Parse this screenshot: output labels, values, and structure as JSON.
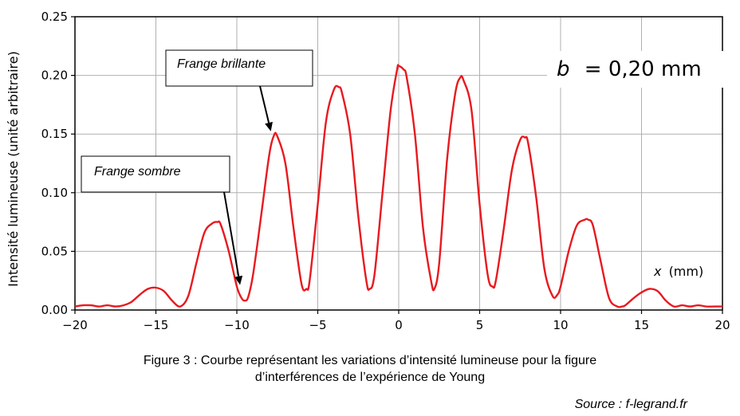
{
  "chart_data": {
    "type": "line",
    "ylabel": "Intensité lumineuse (unité arbitraire)",
    "xlabel_var": "x",
    "xlabel_unit": "(mm)",
    "xlim": [
      -20,
      20
    ],
    "ylim": [
      0,
      0.25
    ],
    "grid": true,
    "x_ticks": [
      -20,
      -15,
      -10,
      -5,
      0,
      5,
      10,
      15,
      20
    ],
    "x_tick_labels": [
      "−20",
      "−15",
      "−10",
      "−5",
      "0",
      "5",
      "10",
      "15",
      "20"
    ],
    "y_ticks": [
      0,
      0.05,
      0.1,
      0.15,
      0.2,
      0.25
    ],
    "y_tick_labels": [
      "0.00",
      "0.05",
      "0.10",
      "0.15",
      "0.20",
      "0.25"
    ],
    "series": [
      {
        "color": "#e8191f",
        "x": [
          -20,
          -19.5,
          -19,
          -18.5,
          -18,
          -17.5,
          -17,
          -16.5,
          -16,
          -15.5,
          -15,
          -14.5,
          -14,
          -13.5,
          -13,
          -12.5,
          -12,
          -11.5,
          -11.2,
          -11,
          -10.5,
          -10,
          -9.7,
          -9.5,
          -9.3,
          -9,
          -8.5,
          -8,
          -7.7,
          -7.5,
          -7,
          -6.5,
          -6,
          -5.7,
          -5.5,
          -5,
          -4.5,
          -4,
          -3.7,
          -3.5,
          -3,
          -2.5,
          -2,
          -1.8,
          -1.5,
          -1,
          -0.5,
          -0.1,
          0,
          0.3,
          0.5,
          1,
          1.5,
          2,
          2.2,
          2.5,
          3,
          3.5,
          3.8,
          4,
          4.5,
          5,
          5.5,
          5.8,
          6,
          6.5,
          7,
          7.5,
          7.8,
          8,
          8.5,
          9,
          9.5,
          9.8,
          10,
          10.5,
          11,
          11.5,
          11.7,
          12,
          12.5,
          13,
          13.5,
          13.8,
          14,
          14.5,
          15,
          15.5,
          16,
          16.5,
          17,
          17.5,
          18,
          18.5,
          19,
          19.5,
          20
        ],
        "y": [
          0.003,
          0.004,
          0.004,
          0.003,
          0.004,
          0.003,
          0.004,
          0.007,
          0.013,
          0.018,
          0.019,
          0.016,
          0.008,
          0.003,
          0.012,
          0.04,
          0.066,
          0.074,
          0.075,
          0.073,
          0.05,
          0.02,
          0.01,
          0.008,
          0.011,
          0.03,
          0.08,
          0.132,
          0.149,
          0.148,
          0.125,
          0.07,
          0.022,
          0.018,
          0.025,
          0.09,
          0.16,
          0.188,
          0.19,
          0.185,
          0.15,
          0.08,
          0.025,
          0.018,
          0.03,
          0.1,
          0.17,
          0.205,
          0.208,
          0.205,
          0.198,
          0.15,
          0.07,
          0.025,
          0.018,
          0.04,
          0.13,
          0.185,
          0.198,
          0.196,
          0.17,
          0.09,
          0.03,
          0.02,
          0.025,
          0.07,
          0.12,
          0.145,
          0.147,
          0.142,
          0.095,
          0.035,
          0.012,
          0.013,
          0.02,
          0.05,
          0.072,
          0.077,
          0.077,
          0.072,
          0.04,
          0.01,
          0.003,
          0.003,
          0.004,
          0.01,
          0.015,
          0.018,
          0.016,
          0.008,
          0.003,
          0.004,
          0.003,
          0.004,
          0.003,
          0.003,
          0.003
        ]
      }
    ],
    "annotations": {
      "bright": {
        "label": "Frange brillante",
        "x": -7.8,
        "y": 0.151
      },
      "dark": {
        "label": "Frange sombre",
        "x": -9.8,
        "y": 0.02
      },
      "param": {
        "symbol": "b",
        "text": "= 0,20 mm"
      }
    }
  },
  "caption": {
    "line1": "Figure 3 : Courbe représentant les variations d’intensité lumineuse pour la figure",
    "line2": "d’interférences de l’expérience de Young"
  },
  "source": "Source : f-legrand.fr"
}
